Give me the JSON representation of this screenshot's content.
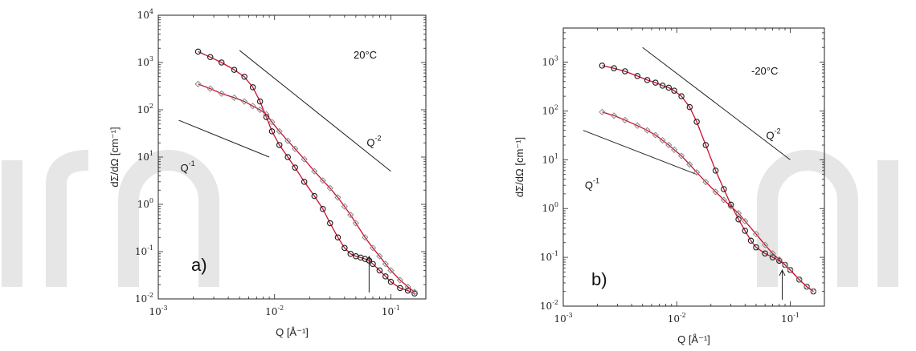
{
  "chart_data": [
    {
      "type": "scatter",
      "panel_label": "a)",
      "temperature_label": "20°C",
      "xlabel": "Q [Å⁻¹]",
      "ylabel": "dΣ/dΩ [cm⁻¹]",
      "xscale": "log",
      "yscale": "log",
      "xlim": [
        0.001,
        0.2
      ],
      "ylim": [
        0.01,
        10000
      ],
      "x_ticks": [
        "10-3",
        "10-2",
        "10-1"
      ],
      "y_ticks": [
        "10-2",
        "10-1",
        "100",
        "101",
        "102",
        "103",
        "104"
      ],
      "reference_lines": [
        {
          "label": "Q-1",
          "x": [
            0.0015,
            0.009
          ],
          "y": [
            60,
            10
          ]
        },
        {
          "label": "Q-2",
          "x": [
            0.005,
            0.1
          ],
          "y": [
            1800,
            5
          ]
        }
      ],
      "arrow_at_q": 0.065,
      "series": [
        {
          "marker": "open-circle",
          "color": "#1a1a1a",
          "fit_color": "#c8102e",
          "x": [
            0.0022,
            0.0028,
            0.0035,
            0.0045,
            0.0055,
            0.0065,
            0.0075,
            0.0085,
            0.0095,
            0.011,
            0.013,
            0.015,
            0.018,
            0.022,
            0.026,
            0.03,
            0.035,
            0.04,
            0.045,
            0.05,
            0.055,
            0.06,
            0.065,
            0.07,
            0.08,
            0.09,
            0.1,
            0.12,
            0.14,
            0.16
          ],
          "y": [
            1700,
            1300,
            1000,
            700,
            500,
            300,
            150,
            70,
            35,
            18,
            10,
            6,
            3,
            1.5,
            0.8,
            0.4,
            0.2,
            0.12,
            0.09,
            0.08,
            0.075,
            0.07,
            0.065,
            0.055,
            0.04,
            0.03,
            0.023,
            0.017,
            0.015,
            0.013
          ]
        },
        {
          "marker": "open-diamond",
          "color": "#888888",
          "fit_color": "#c8102e",
          "x": [
            0.0022,
            0.0028,
            0.0035,
            0.0045,
            0.0055,
            0.0065,
            0.0075,
            0.0085,
            0.0095,
            0.011,
            0.013,
            0.015,
            0.018,
            0.022,
            0.026,
            0.03,
            0.035,
            0.04,
            0.045,
            0.05,
            0.06,
            0.07,
            0.08,
            0.09,
            0.1,
            0.12,
            0.14,
            0.16
          ],
          "y": [
            350,
            280,
            220,
            180,
            150,
            120,
            100,
            80,
            55,
            35,
            22,
            15,
            9,
            5,
            3.2,
            2.2,
            1.4,
            0.9,
            0.6,
            0.4,
            0.2,
            0.12,
            0.08,
            0.055,
            0.04,
            0.025,
            0.018,
            0.014
          ]
        }
      ]
    },
    {
      "type": "scatter",
      "panel_label": "b)",
      "temperature_label": "-20°C",
      "xlabel": "Q [Å⁻¹]",
      "ylabel": "dΣ/dΩ [cm⁻¹]",
      "xscale": "log",
      "yscale": "log",
      "xlim": [
        0.001,
        0.2
      ],
      "ylim": [
        0.01,
        5000
      ],
      "x_ticks": [
        "10-3",
        "10-2",
        "10-1"
      ],
      "y_ticks": [
        "10-2",
        "10-1",
        "100",
        "101",
        "102",
        "103"
      ],
      "reference_lines": [
        {
          "label": "Q-1",
          "x": [
            0.0015,
            0.015
          ],
          "y": [
            40,
            5
          ]
        },
        {
          "label": "Q-2",
          "x": [
            0.005,
            0.1
          ],
          "y": [
            2000,
            10
          ]
        }
      ],
      "arrow_at_q": 0.085,
      "series": [
        {
          "marker": "open-circle",
          "color": "#1a1a1a",
          "fit_color": "#c8102e",
          "x": [
            0.0022,
            0.0028,
            0.0035,
            0.0045,
            0.0055,
            0.0065,
            0.0075,
            0.0085,
            0.0095,
            0.011,
            0.013,
            0.015,
            0.018,
            0.022,
            0.026,
            0.03,
            0.035,
            0.04,
            0.045,
            0.05,
            0.06,
            0.07,
            0.08,
            0.09,
            0.1,
            0.12,
            0.14,
            0.16
          ],
          "y": [
            850,
            750,
            650,
            520,
            430,
            380,
            330,
            300,
            260,
            200,
            120,
            60,
            20,
            6,
            2.5,
            1.2,
            0.6,
            0.35,
            0.22,
            0.16,
            0.12,
            0.1,
            0.085,
            0.07,
            0.055,
            0.035,
            0.025,
            0.02
          ]
        },
        {
          "marker": "open-diamond",
          "color": "#888888",
          "fit_color": "#c8102e",
          "x": [
            0.0022,
            0.0028,
            0.0035,
            0.0045,
            0.0055,
            0.0065,
            0.0075,
            0.0085,
            0.0095,
            0.011,
            0.013,
            0.015,
            0.018,
            0.022,
            0.026,
            0.03,
            0.035,
            0.04,
            0.05,
            0.06,
            0.07,
            0.08,
            0.09,
            0.1,
            0.12,
            0.14,
            0.16
          ],
          "y": [
            95,
            80,
            65,
            50,
            40,
            32,
            25,
            20,
            16,
            12,
            8,
            5.5,
            3.5,
            2.2,
            1.5,
            1.1,
            0.8,
            0.55,
            0.3,
            0.18,
            0.12,
            0.09,
            0.07,
            0.055,
            0.035,
            0.025,
            0.02
          ]
        }
      ]
    }
  ]
}
